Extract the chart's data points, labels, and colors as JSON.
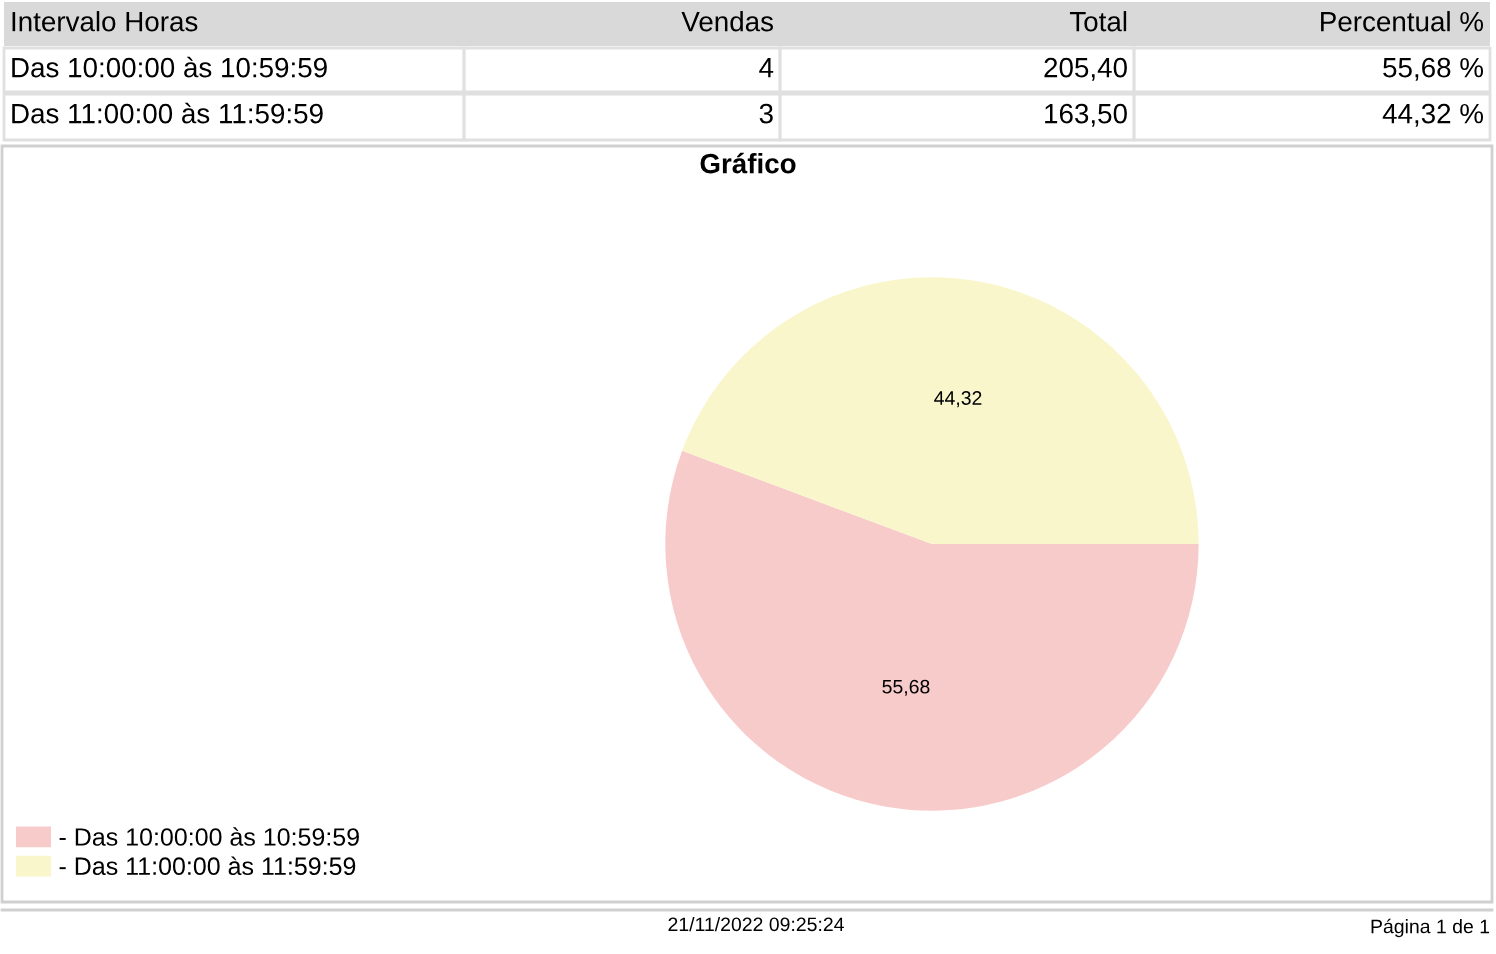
{
  "chart_data": {
    "type": "pie",
    "title": "Gráfico",
    "categories": [
      "- Das 10:00:00 às 10:59:59",
      "- Das 11:00:00 às 11:59:59"
    ],
    "values": [
      55.68,
      44.32
    ],
    "colors": [
      "#f8cbcb",
      "#faf6cc"
    ],
    "value_labels": [
      "55,68",
      "44,32"
    ],
    "legend": "bottom left",
    "annotations": [
      "Intervalo Horas",
      "Vendas",
      "Total",
      "Percentual %",
      "Das 10:00:00 às 10:59:59",
      "4",
      "205,40",
      "55,68 %",
      "Das 11:00:00 às 11:59:59",
      "3",
      "163,50",
      "44,32 %",
      "21/11/2022 09:25:24",
      "Página 1 de 1"
    ]
  }
}
